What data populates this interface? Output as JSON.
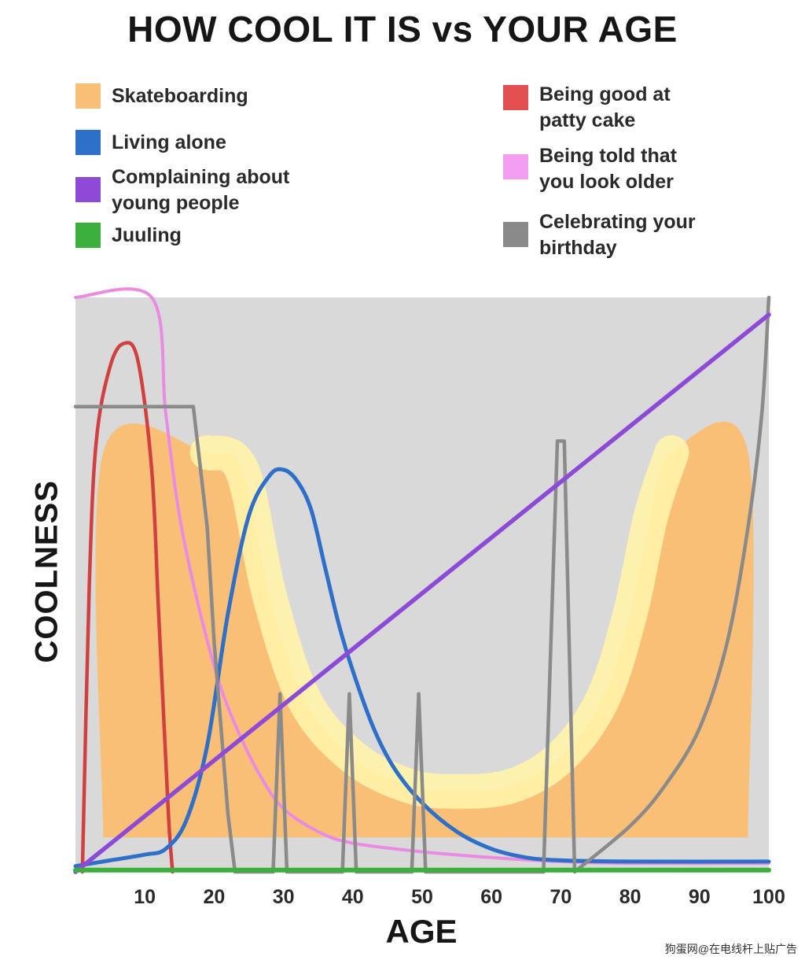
{
  "chart_data": {
    "type": "line",
    "title": "HOW COOL IT IS vs YOUR AGE",
    "xlabel": "AGE",
    "ylabel": "COOLNESS",
    "xlim": [
      0,
      100
    ],
    "ylim": [
      0,
      100
    ],
    "xticks": [
      10,
      20,
      30,
      40,
      50,
      60,
      70,
      80,
      90,
      100
    ],
    "grid": false,
    "legend": "top",
    "background": "#d9d9d9",
    "series": [
      {
        "name": "Skateboarding",
        "color": "#f9bf77",
        "x": [
          4,
          4,
          19,
          24,
          28,
          33,
          40,
          48,
          55,
          63,
          70,
          76,
          80,
          83,
          86,
          97,
          97
        ],
        "y": [
          6,
          73,
          73,
          70,
          48,
          30,
          20,
          15,
          14,
          15,
          20,
          30,
          45,
          62,
          73,
          73,
          6
        ]
      },
      {
        "name": "Being good at patty cake",
        "color": "#d04040",
        "x": [
          1,
          2,
          3,
          5,
          7,
          9,
          11,
          12,
          13,
          13.5,
          14
        ],
        "y": [
          0,
          50,
          75,
          88,
          92,
          89,
          70,
          45,
          20,
          8,
          0
        ]
      },
      {
        "name": "Living alone",
        "color": "#2e6fc9",
        "x": [
          0,
          5,
          10,
          13,
          16,
          19,
          22,
          25,
          28,
          30,
          32,
          34,
          36,
          38,
          40,
          43,
          46,
          50,
          55,
          60,
          65,
          70,
          80,
          100
        ],
        "y": [
          1,
          2,
          3,
          4,
          9,
          22,
          45,
          62,
          69,
          70,
          68,
          63,
          53,
          43,
          35,
          25,
          18,
          12,
          7,
          4,
          2.5,
          2,
          1.8,
          1.8
        ]
      },
      {
        "name": "Being told that you look older",
        "color": "#e98be3",
        "x": [
          0,
          11,
          13,
          15,
          18,
          21,
          24,
          27,
          30,
          35,
          40,
          50,
          60,
          70,
          80,
          100
        ],
        "y": [
          100,
          100,
          80,
          62,
          45,
          32,
          23,
          16,
          11,
          7,
          5,
          3.5,
          2.5,
          1.8,
          1.5,
          1.5
        ]
      },
      {
        "name": "Celebrating your birthday",
        "color": "#8a8a8a",
        "x": [
          0,
          17,
          19,
          20,
          22,
          23,
          28.5,
          29.5,
          30.5,
          38.5,
          39.5,
          40.5,
          48.5,
          49.5,
          50.5,
          67.5,
          69.5,
          70.5,
          72,
          80,
          85,
          90,
          94,
          97,
          99,
          100
        ],
        "y": [
          81,
          81,
          60,
          40,
          10,
          0,
          0,
          31,
          0,
          0,
          31,
          0,
          0,
          31,
          0,
          0,
          75,
          75,
          0,
          8,
          15,
          25,
          40,
          60,
          80,
          100
        ]
      },
      {
        "name": "Complaining about young people",
        "color": "#8c4ad6",
        "x": [
          0,
          100
        ],
        "y": [
          0,
          97
        ]
      },
      {
        "name": "Juuling",
        "color": "#3bb03e",
        "x": [
          0,
          100
        ],
        "y": [
          0.3,
          0.3
        ]
      }
    ]
  },
  "legend": {
    "left": [
      {
        "label": "Skateboarding",
        "color": "#f9bf77"
      },
      {
        "label": "Living alone",
        "color": "#2e6fc9"
      },
      {
        "label": "Complaining about\nyoung people",
        "color": "#8c4ad6"
      },
      {
        "label": "Juuling",
        "color": "#3bb03e"
      }
    ],
    "right": [
      {
        "label": "Being good at\npatty cake",
        "color": "#e25151"
      },
      {
        "label": "Being told that\nyou look older",
        "color": "#f49ef2"
      },
      {
        "label": "Celebrating your\nbirthday",
        "color": "#8a8a8a"
      }
    ]
  },
  "watermark": "狗蛋网@在电线杆上贴广告"
}
